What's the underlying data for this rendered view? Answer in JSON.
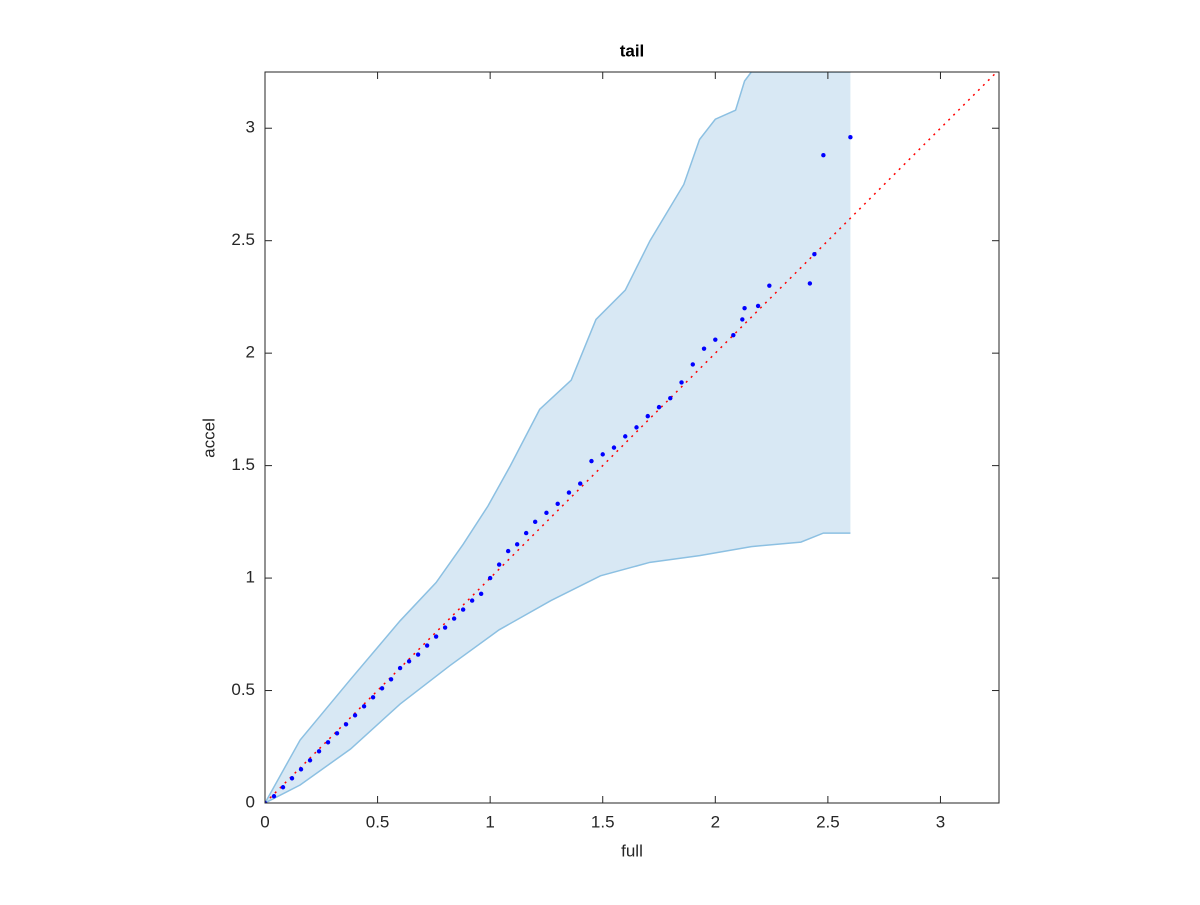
{
  "chart_data": {
    "type": "scatter",
    "title": "tail",
    "x_label": "full",
    "y_label": "accel",
    "xlim": [
      0,
      3.26
    ],
    "ylim": [
      0,
      3.25
    ],
    "xticks": [
      0,
      0.5,
      1,
      1.5,
      2,
      2.5,
      3
    ],
    "yticks": [
      0,
      0.5,
      1,
      1.5,
      2,
      2.5,
      3
    ],
    "band": {
      "color": "#d8e8f4",
      "edge_color": "#8cc0e2",
      "upper": {
        "x": [
          0,
          0.156,
          0.38,
          0.6,
          0.76,
          0.88,
          0.99,
          1.09,
          1.22,
          1.36,
          1.47,
          1.6,
          1.71,
          1.86,
          1.93,
          2.0,
          2.09,
          2.13,
          2.16,
          2.6
        ],
        "y": [
          0,
          0.28,
          0.55,
          0.81,
          0.98,
          1.15,
          1.32,
          1.5,
          1.75,
          1.88,
          2.15,
          2.28,
          2.5,
          2.75,
          2.95,
          3.04,
          3.08,
          3.21,
          3.25,
          3.25
        ]
      },
      "lower": {
        "x": [
          0,
          0.156,
          0.38,
          0.6,
          0.82,
          1.04,
          1.27,
          1.49,
          1.71,
          1.93,
          2.16,
          2.38,
          2.48,
          2.6
        ],
        "y": [
          0,
          0.08,
          0.24,
          0.44,
          0.61,
          0.77,
          0.9,
          1.01,
          1.07,
          1.1,
          1.14,
          1.16,
          1.2,
          1.2
        ]
      }
    },
    "reference_line": {
      "color": "#ff0000",
      "x": [
        0,
        3.25
      ],
      "values": [
        0,
        3.25
      ]
    },
    "series": [
      {
        "color": "#0000ff",
        "x": [
          0,
          0.04,
          0.08,
          0.12,
          0.16,
          0.2,
          0.24,
          0.28,
          0.32,
          0.36,
          0.4,
          0.44,
          0.48,
          0.52,
          0.56,
          0.6,
          0.64,
          0.68,
          0.72,
          0.76,
          0.8,
          0.84,
          0.88,
          0.92,
          0.96,
          1.0,
          1.04,
          1.08,
          1.12,
          1.16,
          1.2,
          1.25,
          1.3,
          1.35,
          1.4,
          1.45,
          1.5,
          1.55,
          1.6,
          1.65,
          1.7,
          1.75,
          1.8,
          1.85,
          1.9,
          1.95,
          2.0,
          2.08,
          2.12,
          2.13,
          2.19,
          2.24,
          2.42,
          2.44,
          2.48,
          2.6
        ],
        "values": [
          0,
          0.03,
          0.07,
          0.11,
          0.15,
          0.19,
          0.23,
          0.27,
          0.31,
          0.35,
          0.39,
          0.43,
          0.47,
          0.51,
          0.55,
          0.6,
          0.63,
          0.66,
          0.7,
          0.74,
          0.78,
          0.82,
          0.86,
          0.9,
          0.93,
          1.0,
          1.06,
          1.12,
          1.15,
          1.2,
          1.25,
          1.29,
          1.33,
          1.38,
          1.42,
          1.52,
          1.55,
          1.58,
          1.63,
          1.67,
          1.72,
          1.76,
          1.8,
          1.87,
          1.95,
          2.02,
          2.06,
          2.08,
          2.15,
          2.2,
          2.21,
          2.3,
          2.31,
          2.44,
          2.88,
          2.96
        ]
      }
    ]
  }
}
